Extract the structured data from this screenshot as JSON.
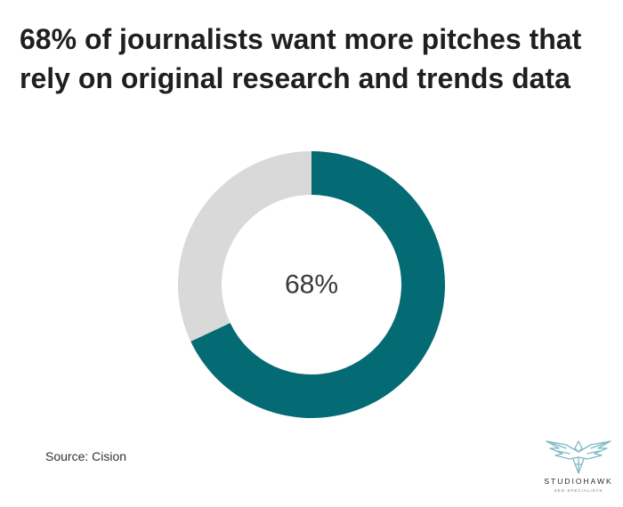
{
  "title": "68% of journalists want more pitches that rely on original research and trends data",
  "chart_data": {
    "type": "pie",
    "donut": true,
    "center_label": "68%",
    "slices": [
      {
        "value": 68,
        "color": "#046A73"
      },
      {
        "value": 32,
        "color": "#D9D9D9"
      }
    ],
    "legend": "none"
  },
  "source": "Source: Cision",
  "logo": {
    "name": "STUDIOHAWK",
    "tagline": "SEO SPECIALISTS",
    "icon": "hawk-icon",
    "color": "#7FB9C3"
  }
}
